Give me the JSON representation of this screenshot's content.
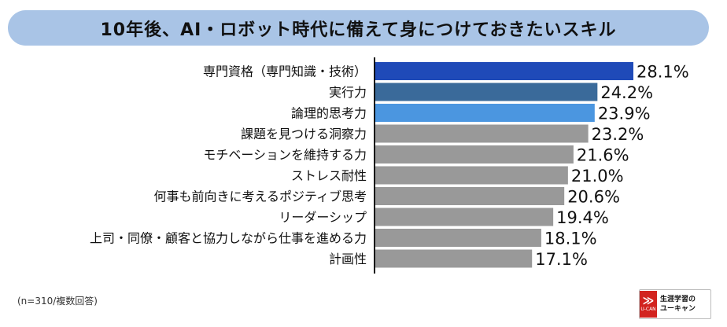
{
  "title": "10年後、AI・ロボット時代に備えて身につけておきたいスキル",
  "note": "(n=310/複数回答)",
  "logo": {
    "line1": "生涯学習の",
    "line2": "ユーキャン",
    "mark_text": "U-CAN",
    "mark_glyph": "≫"
  },
  "colors": {
    "highlight1": "#1f4ab8",
    "highlight2": "#3a6a9a",
    "highlight3": "#4b96e0",
    "default_bar": "#999999",
    "axis": "#111111",
    "title_bg": "#a9c4e6"
  },
  "chart_data": {
    "type": "bar",
    "orientation": "horizontal",
    "categories": [
      "専門資格（専門知識・技術）",
      "実行力",
      "論理的思考力",
      "課題を見つける洞察力",
      "モチベーションを維持する力",
      "ストレス耐性",
      "何事も前向きに考えるポジティブ思考",
      "リーダーシップ",
      "上司・同僚・顧客と協力しながら仕事を進める力",
      "計画性"
    ],
    "values": [
      28.1,
      24.2,
      23.9,
      23.2,
      21.6,
      21.0,
      20.6,
      19.4,
      18.1,
      17.1
    ],
    "labels": [
      "28.1%",
      "24.2%",
      "23.9%",
      "23.2%",
      "21.6%",
      "21.0%",
      "20.6%",
      "19.4%",
      "18.1%",
      "17.1%"
    ],
    "bar_colors": [
      "#1f4ab8",
      "#3a6a9a",
      "#4b96e0",
      "#999999",
      "#999999",
      "#999999",
      "#999999",
      "#999999",
      "#999999",
      "#999999"
    ],
    "xlim": [
      0,
      30
    ],
    "grid": false,
    "legend": "none"
  }
}
